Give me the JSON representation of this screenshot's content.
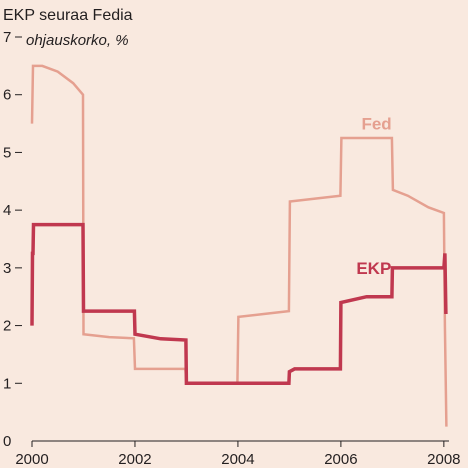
{
  "chart_data": {
    "type": "line",
    "title": "EKP seuraa Fedia",
    "ylabel": "ohjauskorko, %",
    "xlim": [
      2000,
      2008.1
    ],
    "ylim": [
      0,
      7
    ],
    "x_ticks": [
      "2000",
      "2002",
      "2004",
      "2006",
      "2008"
    ],
    "x_tick_values": [
      2000,
      2002,
      2004,
      2006,
      2008
    ],
    "y_ticks": [
      "0",
      "1",
      "2",
      "3",
      "4",
      "5",
      "6",
      "7"
    ],
    "y_tick_values": [
      0,
      1,
      2,
      3,
      4,
      5,
      6,
      7
    ],
    "grid": false,
    "series": [
      {
        "name": "Fed",
        "color": "#e5a090",
        "points": [
          [
            2000.0,
            5.5
          ],
          [
            2000.02,
            6.5
          ],
          [
            2000.2,
            6.5
          ],
          [
            2000.5,
            6.4
          ],
          [
            2000.8,
            6.2
          ],
          [
            2000.99,
            6.0
          ],
          [
            2001.0,
            1.85
          ],
          [
            2001.5,
            1.8
          ],
          [
            2001.98,
            1.78
          ],
          [
            2002.0,
            1.25
          ],
          [
            2002.98,
            1.25
          ],
          [
            2003.0,
            1.0
          ],
          [
            2003.99,
            1.0
          ],
          [
            2004.01,
            2.15
          ],
          [
            2004.5,
            2.2
          ],
          [
            2004.99,
            2.25
          ],
          [
            2005.01,
            4.15
          ],
          [
            2005.5,
            4.2
          ],
          [
            2005.99,
            4.25
          ],
          [
            2006.01,
            5.25
          ],
          [
            2006.99,
            5.25
          ],
          [
            2007.01,
            4.35
          ],
          [
            2007.3,
            4.25
          ],
          [
            2007.7,
            4.05
          ],
          [
            2008.0,
            3.95
          ],
          [
            2008.02,
            2.0
          ],
          [
            2008.05,
            0.25
          ]
        ]
      },
      {
        "name": "EKP",
        "color": "#c0384f",
        "points": [
          [
            2000.0,
            2.0
          ],
          [
            2000.01,
            3.25
          ],
          [
            2000.02,
            3.25
          ],
          [
            2000.03,
            3.75
          ],
          [
            2000.99,
            3.75
          ],
          [
            2001.0,
            2.25
          ],
          [
            2001.99,
            2.25
          ],
          [
            2002.0,
            1.85
          ],
          [
            2002.5,
            1.77
          ],
          [
            2002.99,
            1.75
          ],
          [
            2003.0,
            1.0
          ],
          [
            2004.99,
            1.0
          ],
          [
            2005.0,
            1.2
          ],
          [
            2005.1,
            1.25
          ],
          [
            2005.99,
            1.25
          ],
          [
            2006.0,
            2.4
          ],
          [
            2006.5,
            2.5
          ],
          [
            2006.99,
            2.5
          ],
          [
            2007.0,
            3.0
          ],
          [
            2008.0,
            3.0
          ],
          [
            2008.02,
            3.25
          ],
          [
            2008.04,
            2.2
          ]
        ]
      }
    ],
    "annotations": [
      {
        "text": "Fed",
        "x": 2006.4,
        "y": 5.5
      },
      {
        "text": "EKP",
        "x": 2006.3,
        "y": 3.0
      }
    ]
  }
}
